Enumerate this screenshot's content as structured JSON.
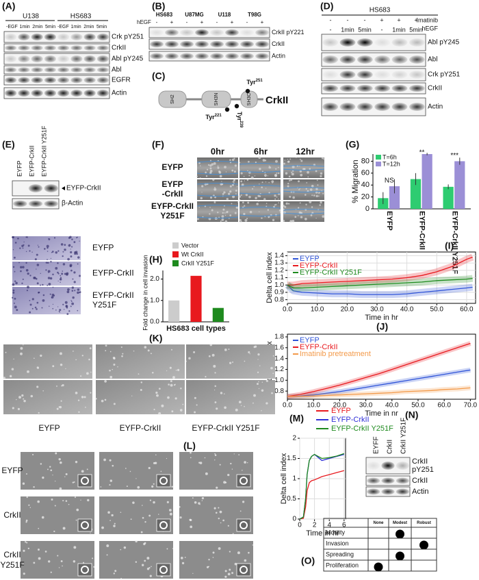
{
  "panels": {
    "A": {
      "label": "(A)",
      "groups": [
        "U138",
        "HS683"
      ],
      "lanes": [
        "-EGF",
        "1min",
        "2min",
        "5min",
        "-EGF",
        "1min",
        "2min",
        "5min"
      ],
      "bands": [
        "Crk pY251",
        "CrkII",
        "Abl pY245",
        "Abl",
        "EGFR",
        "Actin"
      ]
    },
    "B": {
      "label": "(B)",
      "cells": [
        "HS683",
        "U87MG",
        "U118",
        "T98G"
      ],
      "treatment": "hEGF",
      "signs": [
        "-",
        "+",
        "-",
        "+",
        "-",
        "+",
        "-",
        "+"
      ],
      "bands": [
        "CrkII pY221",
        "CrkII",
        "Actin"
      ]
    },
    "C": {
      "label": "(C)",
      "domains": [
        "SH2",
        "SH3N",
        "SH3C"
      ],
      "sites": [
        {
          "name": "Tyr",
          "num": "221"
        },
        {
          "name": "Tyr",
          "num": "239"
        },
        {
          "name": "Tyr",
          "num": "251"
        }
      ],
      "protein": "CrkII"
    },
    "D": {
      "label": "(D)",
      "cell": "HS683",
      "conditions": [
        {
          "name": "Imatinib",
          "signs": [
            "-",
            "-",
            "-",
            "+",
            "+",
            "+"
          ]
        },
        {
          "name": "hEGF",
          "signs": [
            "-",
            "1min",
            "5min",
            "-",
            "1min",
            "5min"
          ]
        }
      ],
      "bands": [
        "Abl pY245",
        "Abl",
        "Crk pY251",
        "CrkII",
        "Actin"
      ]
    },
    "E": {
      "label": "(E)",
      "lanes": [
        "EYFP",
        "EYFP-CrkII",
        "EYFP-CrkII Y251F"
      ],
      "bands": [
        "EYFP-CrkII",
        "β-Actin"
      ]
    },
    "F": {
      "label": "(F)",
      "times": [
        "0hr",
        "6hr",
        "12hr"
      ],
      "rows": [
        [
          "EYFP"
        ],
        [
          "EYFP",
          "-CrkII"
        ],
        [
          "EYFP-CrkII",
          "Y251F"
        ]
      ]
    },
    "G": {
      "label": "(G)",
      "type": "bar",
      "y_label": "% Migration",
      "categories": [
        "EYFP",
        "EYFP-CrkII",
        "EYFP-CrkII Y251F"
      ],
      "series": [
        {
          "name": "T=6h",
          "color": "#2ecc71",
          "values": [
            18,
            50,
            37
          ],
          "errors": [
            10,
            10,
            4
          ]
        },
        {
          "name": "T=12h",
          "color": "#9b8fd6",
          "values": [
            38,
            92,
            80
          ],
          "errors": [
            12,
            2,
            6
          ]
        }
      ],
      "annotations": [
        "NS",
        "**",
        "***"
      ],
      "ylim": [
        0,
        92
      ],
      "yticks": [
        0,
        20,
        40,
        60,
        80
      ]
    },
    "H": {
      "label": "(H)",
      "type": "bar",
      "rows": [
        [
          "EYFP"
        ],
        [
          "EYFP-CrkII"
        ],
        [
          "EYFP-CrkII",
          "Y251F"
        ]
      ],
      "y_label": "Fold change in cell invasion",
      "x_label": "HS683 cell types",
      "series": [
        {
          "name": "Vector",
          "color": "#cccccc",
          "values": [
            1.0
          ]
        },
        {
          "name": "Wt CrkII",
          "color": "#e8191e",
          "values": [
            2.15
          ]
        },
        {
          "name": "CrkII Y251F",
          "color": "#1e8a1e",
          "values": [
            0.65
          ]
        }
      ],
      "ylim": [
        0,
        2.4
      ],
      "yticks": [
        {
          "value": 0,
          "label": "0.0"
        },
        {
          "value": 1,
          "label": "1.0"
        },
        {
          "value": 2,
          "label": "2.0"
        }
      ]
    },
    "I": {
      "label": "(I)",
      "type": "line",
      "x_label": "Time in hr",
      "y_label": "Delta cell index",
      "grid": true,
      "x": [
        0,
        2,
        5,
        10,
        15,
        20,
        25,
        30,
        35,
        40,
        45,
        50,
        55,
        60,
        62
      ],
      "series": [
        {
          "name": "EYFP",
          "color": "#2f54d8",
          "values": [
            1.0,
            0.92,
            0.9,
            0.89,
            0.88,
            0.88,
            0.87,
            0.87,
            0.87,
            0.88,
            0.9,
            0.92,
            0.94,
            0.96,
            0.97
          ]
        },
        {
          "name": "EYFP-CrkII",
          "color": "#e8191e",
          "values": [
            1.0,
            1.0,
            1.02,
            1.03,
            1.04,
            1.05,
            1.06,
            1.07,
            1.08,
            1.1,
            1.13,
            1.18,
            1.25,
            1.35,
            1.38
          ]
        },
        {
          "name": "EYFP-CrkII Y251F",
          "color": "#1e8a1e",
          "values": [
            1.0,
            0.96,
            0.96,
            0.97,
            0.98,
            0.99,
            1.0,
            1.01,
            1.02,
            1.03,
            1.04,
            1.06,
            1.07,
            1.08,
            1.09
          ]
        }
      ],
      "xlim": [
        0,
        63
      ],
      "xticks": [
        {
          "value": 0,
          "label": "0.0"
        },
        {
          "value": 10,
          "label": "10.0"
        },
        {
          "value": 20,
          "label": "20.0"
        },
        {
          "value": 30,
          "label": "30.0"
        },
        {
          "value": 40,
          "label": "40.0"
        },
        {
          "value": 50,
          "label": "50.0"
        },
        {
          "value": 60,
          "label": "60.0"
        }
      ],
      "ylim": [
        0.75,
        1.45
      ],
      "yticks": [
        0.8,
        0.9,
        {
          "value": 1,
          "label": "1.0"
        },
        1.1,
        1.2,
        1.3,
        1.4
      ]
    },
    "J": {
      "label": "(J)",
      "type": "line",
      "x_label": "Time in nr",
      "y_label": "Delta cell index",
      "grid": false,
      "x": [
        0,
        5,
        10,
        15,
        20,
        25,
        30,
        35,
        40,
        45,
        50,
        55,
        60,
        65,
        70
      ],
      "series": [
        {
          "name": "EYFP",
          "color": "#2f54d8",
          "values": [
            0.7,
            0.71,
            0.73,
            0.76,
            0.79,
            0.83,
            0.87,
            0.91,
            0.95,
            0.99,
            1.03,
            1.07,
            1.11,
            1.15,
            1.19
          ]
        },
        {
          "name": "EYFP-CrkII",
          "color": "#e8191e",
          "values": [
            0.7,
            0.74,
            0.79,
            0.85,
            0.91,
            0.98,
            1.05,
            1.12,
            1.2,
            1.28,
            1.36,
            1.44,
            1.52,
            1.6,
            1.68
          ]
        },
        {
          "name": "Imatinib pretreatment",
          "color": "#f39a4a",
          "values": [
            0.7,
            0.7,
            0.71,
            0.72,
            0.73,
            0.74,
            0.75,
            0.76,
            0.77,
            0.79,
            0.8,
            0.81,
            0.83,
            0.84,
            0.86
          ]
        }
      ],
      "xlim": [
        0,
        72
      ],
      "xticks": [
        {
          "value": 0,
          "label": "0.0"
        },
        {
          "value": 10,
          "label": "10.0"
        },
        {
          "value": 20,
          "label": "20.0"
        },
        {
          "value": 30,
          "label": "30.0"
        },
        {
          "value": 40,
          "label": "40.0"
        },
        {
          "value": 50,
          "label": "50.0"
        },
        {
          "value": 60,
          "label": "60.0"
        },
        {
          "value": 70,
          "label": "70.0"
        }
      ],
      "ylim": [
        0.65,
        1.85
      ],
      "yticks": [
        0.8,
        {
          "value": 1,
          "label": "1.0"
        },
        1.2,
        1.4,
        1.6,
        1.8
      ]
    },
    "K": {
      "label": "(K)",
      "columns": [
        "EYFP",
        "EYFP-CrkII",
        "EYFP-CrkII Y251F"
      ]
    },
    "L": {
      "label": "(L)",
      "rows": [
        [
          "EYFP"
        ],
        [
          "CrkII"
        ],
        [
          "CrkII",
          "Y251F"
        ]
      ]
    },
    "M": {
      "label": "(M)",
      "type": "line",
      "x_label": "Time in hr",
      "y_label": "Delta cell index",
      "grid": true,
      "x": [
        0,
        0.5,
        0.8,
        1,
        1.3,
        1.6,
        2,
        3,
        4,
        5,
        6
      ],
      "series": [
        {
          "name": "EYFP",
          "color": "#e8191e",
          "values": [
            0,
            0.02,
            0.3,
            0.7,
            0.9,
            0.95,
            0.97,
            1.05,
            1.1,
            1.15,
            1.2
          ]
        },
        {
          "name": "EYFP-CrkII",
          "color": "#2f2fd8",
          "values": [
            0,
            0.05,
            0.5,
            1.1,
            1.45,
            1.55,
            1.6,
            1.45,
            1.5,
            1.55,
            1.6
          ]
        },
        {
          "name": "EYFP-CrkII Y251F",
          "color": "#1e8a1e",
          "values": [
            0,
            0.05,
            0.5,
            1.1,
            1.45,
            1.55,
            1.6,
            1.5,
            1.52,
            1.56,
            1.62
          ]
        }
      ],
      "xlim": [
        0,
        6.2
      ],
      "xticks": [
        0,
        2,
        4,
        6
      ],
      "ylim": [
        0,
        2
      ],
      "yticks": [
        0,
        0.5,
        1,
        1.5,
        2
      ]
    },
    "N": {
      "label": "(N)",
      "lanes": [
        "EYFF",
        "CrkII",
        "CrkII Y251F"
      ],
      "bands": [
        [
          "CrkII",
          "pY251"
        ],
        [
          "CrkII"
        ],
        [
          "Actin"
        ]
      ]
    },
    "O": {
      "label": "(O)",
      "columns": [
        "None",
        "Modest",
        "Robust"
      ],
      "rows": [
        {
          "name": "Motility",
          "level": 1
        },
        {
          "name": "Invasion",
          "level": 2
        },
        {
          "name": "Spreading",
          "level": 1
        },
        {
          "name": "Proliferation",
          "level": 0
        }
      ]
    }
  }
}
